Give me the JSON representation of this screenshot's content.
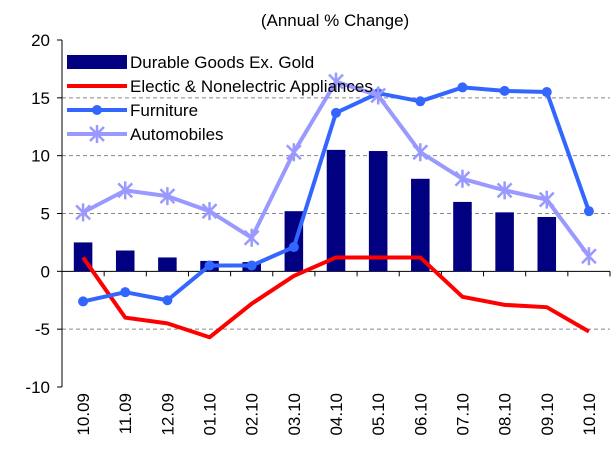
{
  "chart_data": {
    "type": "bar_line",
    "title": "(Annual % Change)",
    "categories": [
      "10.09",
      "11.09",
      "12.09",
      "01.10",
      "02.10",
      "03.10",
      "04.10",
      "05.10",
      "06.10",
      "07.10",
      "08.10",
      "09.10",
      "10.10"
    ],
    "series": [
      {
        "name": "Durable Goods Ex. Gold",
        "type": "bar",
        "color": "#000080",
        "values": [
          2.5,
          1.8,
          1.2,
          0.9,
          0.8,
          5.2,
          10.5,
          10.4,
          8.0,
          6.0,
          5.1,
          4.7,
          null
        ]
      },
      {
        "name": "Electic & Nonelectric Appliances",
        "type": "line",
        "color": "#ff0000",
        "values": [
          1.2,
          -4.0,
          -4.5,
          -5.7,
          -2.8,
          -0.4,
          1.2,
          1.2,
          1.2,
          -2.2,
          -2.9,
          -3.1,
          -5.2
        ]
      },
      {
        "name": "Furniture",
        "type": "line",
        "marker": "circle",
        "color": "#3366ff",
        "values": [
          -2.6,
          -1.8,
          -2.5,
          0.5,
          0.5,
          2.1,
          13.7,
          15.4,
          14.7,
          15.9,
          15.6,
          15.5,
          5.2
        ]
      },
      {
        "name": "Automobiles",
        "type": "line",
        "marker": "star",
        "color": "#9999ff",
        "values": [
          5.1,
          7.0,
          6.5,
          5.2,
          2.9,
          10.3,
          16.4,
          15.2,
          10.3,
          8.0,
          7.0,
          6.2,
          1.3
        ]
      }
    ],
    "ylim": [
      -10,
      20
    ],
    "yticks": [
      -10,
      -5,
      0,
      5,
      10,
      15,
      20
    ],
    "grid": true,
    "legend": "top-left"
  }
}
